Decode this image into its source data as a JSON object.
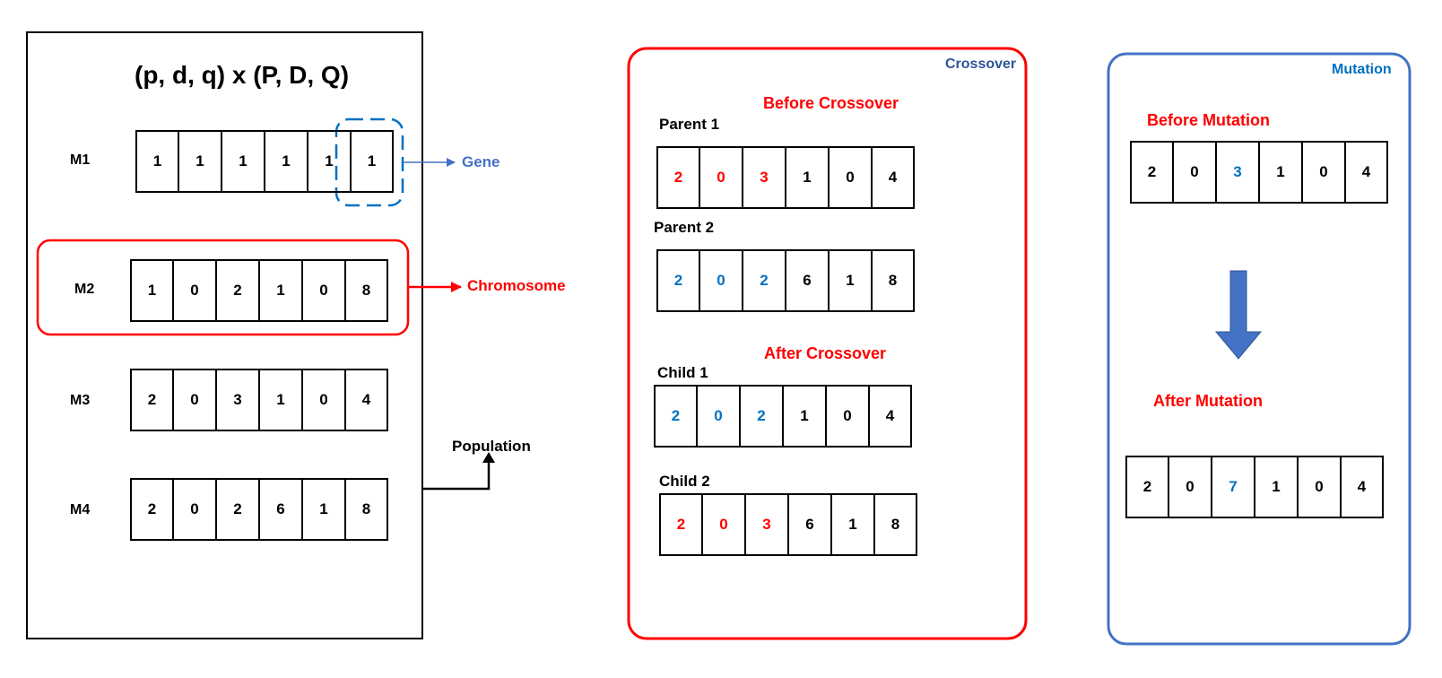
{
  "colors": {
    "red": "#ff0000",
    "blue": "#0070c0",
    "navy": "#2e5597",
    "lightblue": "#4472c4",
    "black": "#000000"
  },
  "population": {
    "formula": "(p,  d,   q) x (P,  D,  Q)",
    "annotations": {
      "gene": "Gene",
      "chromosome": "Chromosome",
      "population": "Population"
    },
    "rows": [
      {
        "label": "M1",
        "genes": [
          "1",
          "1",
          "1",
          "1",
          "1",
          "1"
        ]
      },
      {
        "label": "M2",
        "genes": [
          "1",
          "0",
          "2",
          "1",
          "0",
          "8"
        ]
      },
      {
        "label": "M3",
        "genes": [
          "2",
          "0",
          "3",
          "1",
          "0",
          "4"
        ]
      },
      {
        "label": "M4",
        "genes": [
          "2",
          "0",
          "2",
          "6",
          "1",
          "8"
        ]
      }
    ]
  },
  "crossover": {
    "title": "Crossover",
    "before_label": "Before Crossover",
    "after_label": "After Crossover",
    "parent1": {
      "label": "Parent 1",
      "genes": [
        "2",
        "0",
        "3",
        "1",
        "0",
        "4"
      ],
      "colors": [
        "red",
        "red",
        "red",
        "black",
        "black",
        "black"
      ]
    },
    "parent2": {
      "label": "Parent 2",
      "genes": [
        "2",
        "0",
        "2",
        "6",
        "1",
        "8"
      ],
      "colors": [
        "blue",
        "blue",
        "blue",
        "black",
        "black",
        "black"
      ]
    },
    "child1": {
      "label": "Child 1",
      "genes": [
        "2",
        "0",
        "2",
        "1",
        "0",
        "4"
      ],
      "colors": [
        "blue",
        "blue",
        "blue",
        "black",
        "black",
        "black"
      ]
    },
    "child2": {
      "label": "Child 2",
      "genes": [
        "2",
        "0",
        "3",
        "6",
        "1",
        "8"
      ],
      "colors": [
        "red",
        "red",
        "red",
        "black",
        "black",
        "black"
      ]
    }
  },
  "mutation": {
    "title": "Mutation",
    "before_label": "Before Mutation",
    "after_label": "After Mutation",
    "before": {
      "genes": [
        "2",
        "0",
        "3",
        "1",
        "0",
        "4"
      ],
      "colors": [
        "black",
        "black",
        "blue",
        "black",
        "black",
        "black"
      ]
    },
    "after": {
      "genes": [
        "2",
        "0",
        "7",
        "1",
        "0",
        "4"
      ],
      "colors": [
        "black",
        "black",
        "blue",
        "black",
        "black",
        "black"
      ]
    }
  }
}
